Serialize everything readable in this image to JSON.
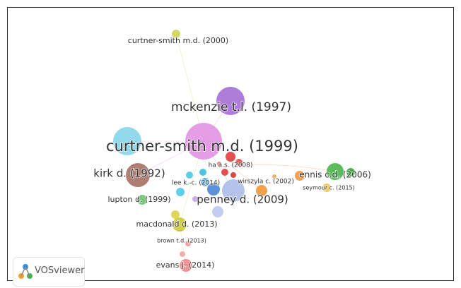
{
  "nodes": [
    {
      "label": "curtner-smith m.d. (2000)"
    },
    {
      "label": "mckenzie t.l. (1997)"
    },
    {
      "label": "curtner-smith m.d. (1999)"
    },
    {
      "label": "kirk d. (1992)"
    },
    {
      "label": "ha a.s. (2008)"
    },
    {
      "label": "lee k.-c. (2014)"
    },
    {
      "label": "wirszyla c. (2002)"
    },
    {
      "label": "ennis c.d. (2006)"
    },
    {
      "label": "seymour c. (2015)"
    },
    {
      "label": "lupton d. (1999)"
    },
    {
      "label": "penney d. (2009)"
    },
    {
      "label": "macdonald d. (2013)"
    },
    {
      "label": "brown t.d. (2013)"
    },
    {
      "label": "evans j. (2014)"
    }
  ],
  "logo": {
    "label": "VOSviewer"
  }
}
